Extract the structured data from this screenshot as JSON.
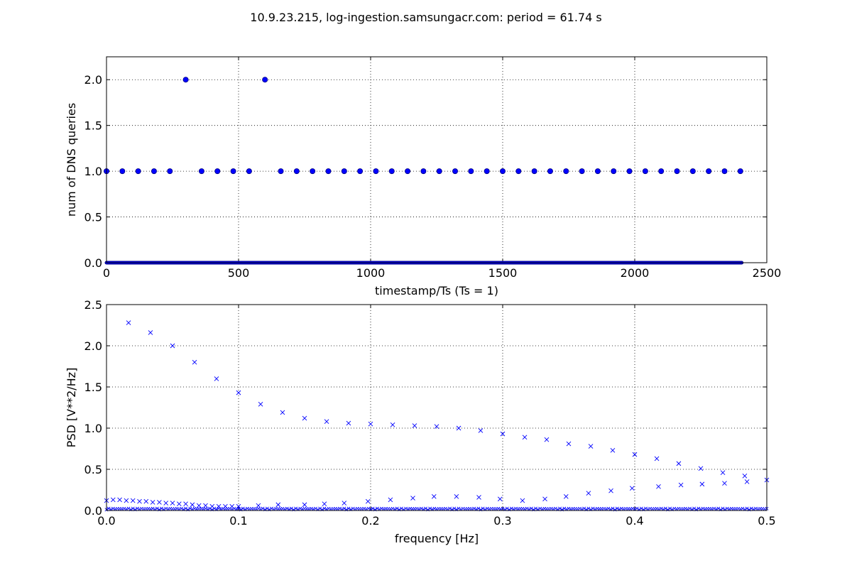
{
  "figure": {
    "title": "10.9.23.215, log-ingestion.samsungacr.com: period = 61.74 s"
  },
  "colors": {
    "series": "#0000ff",
    "marker_edge": "#000080",
    "grid": "#000000",
    "axes": "#000000"
  },
  "chart_data": [
    {
      "type": "scatter",
      "xlabel": "timestamp/Ts (Ts = 1)",
      "ylabel": "num of DNS queries",
      "xlim": [
        0,
        2500
      ],
      "ylim": [
        0,
        2.25
      ],
      "xticks": [
        0,
        500,
        1000,
        1500,
        2000,
        2500
      ],
      "xtick_labels": [
        "0",
        "500",
        "1000",
        "1500",
        "2000",
        "2500"
      ],
      "yticks": [
        0,
        0.5,
        1.0,
        1.5,
        2.0
      ],
      "ytick_labels": [
        "0.0",
        "0.5",
        "1.0",
        "1.5",
        "2.0"
      ],
      "grid": true,
      "marker": "circle",
      "series": [
        {
          "points_value_1": [
            0,
            60,
            120,
            180,
            240,
            360,
            420,
            480,
            540,
            660,
            720,
            780,
            840,
            900,
            960,
            1020,
            1080,
            1140,
            1200,
            1260,
            1320,
            1380,
            1440,
            1500,
            1560,
            1620,
            1680,
            1740,
            1800,
            1860,
            1920,
            1980,
            2040,
            2100,
            2160,
            2220,
            2280,
            2340,
            2400
          ],
          "points_value_2": [
            300,
            600
          ],
          "baseline_zero_range": [
            0,
            2405
          ]
        }
      ]
    },
    {
      "type": "scatter",
      "xlabel": "frequency [Hz]",
      "ylabel": "PSD [V**2/Hz]",
      "xlim": [
        0,
        0.5
      ],
      "ylim": [
        0,
        2.5
      ],
      "xticks": [
        0.0,
        0.1,
        0.2,
        0.3,
        0.4,
        0.5
      ],
      "xtick_labels": [
        "0.0",
        "0.1",
        "0.2",
        "0.3",
        "0.4",
        "0.5"
      ],
      "yticks": [
        0,
        0.5,
        1.0,
        1.5,
        2.0,
        2.5
      ],
      "ytick_labels": [
        "0.0",
        "0.5",
        "1.0",
        "1.5",
        "2.0",
        "2.5"
      ],
      "grid": true,
      "marker": "x",
      "series": [
        {
          "x": [
            0.0167,
            0.0333,
            0.05,
            0.0667,
            0.0833,
            0.1,
            0.1167,
            0.1333,
            0.15,
            0.1667,
            0.1833,
            0.2,
            0.2167,
            0.2333,
            0.25,
            0.2667,
            0.2833,
            0.3,
            0.3167,
            0.3333,
            0.35,
            0.3667,
            0.3833,
            0.4,
            0.4167,
            0.4333,
            0.45,
            0.4667,
            0.4833
          ],
          "y": [
            2.28,
            2.16,
            2.0,
            1.8,
            1.6,
            1.43,
            1.29,
            1.19,
            1.12,
            1.08,
            1.06,
            1.05,
            1.04,
            1.03,
            1.02,
            1.0,
            0.97,
            0.93,
            0.89,
            0.86,
            0.81,
            0.78,
            0.73,
            0.68,
            0.63,
            0.57,
            0.51,
            0.46,
            0.42
          ]
        },
        {
          "x": [
            0.0,
            0.005,
            0.01,
            0.015,
            0.02,
            0.025,
            0.03,
            0.035,
            0.04,
            0.045,
            0.05,
            0.055,
            0.06,
            0.065,
            0.07,
            0.075,
            0.08,
            0.085,
            0.09,
            0.095,
            0.1,
            0.115,
            0.13,
            0.15,
            0.165,
            0.18,
            0.198,
            0.215,
            0.232,
            0.248,
            0.265,
            0.282,
            0.298,
            0.315,
            0.332,
            0.348,
            0.365,
            0.382,
            0.398,
            0.418,
            0.435,
            0.451,
            0.468,
            0.485,
            0.5
          ],
          "y": [
            0.12,
            0.13,
            0.13,
            0.12,
            0.12,
            0.11,
            0.11,
            0.1,
            0.1,
            0.09,
            0.09,
            0.08,
            0.08,
            0.07,
            0.06,
            0.06,
            0.05,
            0.05,
            0.05,
            0.05,
            0.05,
            0.06,
            0.07,
            0.07,
            0.08,
            0.09,
            0.11,
            0.13,
            0.15,
            0.17,
            0.17,
            0.16,
            0.14,
            0.12,
            0.14,
            0.17,
            0.21,
            0.24,
            0.27,
            0.29,
            0.31,
            0.32,
            0.33,
            0.35,
            0.37
          ]
        }
      ]
    }
  ]
}
